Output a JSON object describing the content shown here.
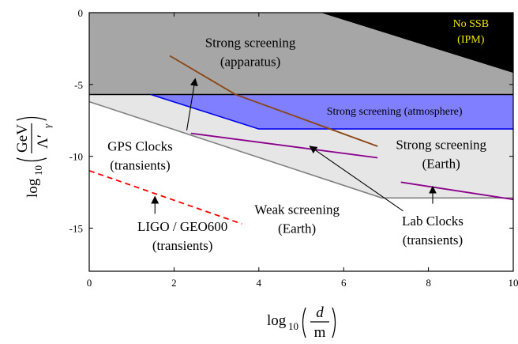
{
  "chart_data": {
    "type": "area",
    "xlabel": "log10(d/m)",
    "ylabel": "log10(GeV/Λ'γ)",
    "xlim": [
      0,
      10
    ],
    "ylim": [
      -18,
      0
    ],
    "xticks": [
      "0",
      "2",
      "4",
      "6",
      "8",
      "10"
    ],
    "yticks": [
      "0",
      "-5",
      "-10",
      "-15"
    ],
    "regions": [
      {
        "name": "No SSB",
        "label2": "(IPM)",
        "color": "#000000",
        "points": [
          [
            5.45,
            0
          ],
          [
            10,
            0
          ],
          [
            10,
            -4.2
          ]
        ]
      },
      {
        "name": "Strong screening",
        "label2": "(apparatus)",
        "color": "#a6a6a6",
        "points": [
          [
            0,
            0
          ],
          [
            5.45,
            0
          ],
          [
            10,
            -4.2
          ],
          [
            10,
            -5.7
          ],
          [
            0,
            -5.7
          ]
        ]
      },
      {
        "name": "Strong screening (atmosphere)",
        "color": "#7f7fff",
        "points": [
          [
            1.45,
            -5.7
          ],
          [
            10,
            -5.7
          ],
          [
            10,
            -8.1
          ],
          [
            4.0,
            -8.1
          ]
        ]
      },
      {
        "name": "Strong screening",
        "label2": "(Earth)",
        "color": "#e6e6e6",
        "points": [
          [
            0,
            -5.7
          ],
          [
            1.45,
            -5.7
          ],
          [
            4.0,
            -8.1
          ],
          [
            10,
            -8.1
          ],
          [
            10,
            -12.9
          ],
          [
            6.9,
            -12.9
          ],
          [
            0,
            -6.2
          ]
        ]
      }
    ],
    "boundaries": [
      {
        "name": "apparatus boundary",
        "color": "#000000",
        "points": [
          [
            0,
            -5.7
          ],
          [
            10,
            -5.7
          ]
        ]
      },
      {
        "name": "atmosphere boundary",
        "color": "#0000ee",
        "points": [
          [
            1.45,
            -5.7
          ],
          [
            4.0,
            -8.1
          ],
          [
            10,
            -8.1
          ]
        ]
      },
      {
        "name": "earth boundary",
        "color": "#808080",
        "points": [
          [
            0,
            -6.2
          ],
          [
            6.9,
            -12.9
          ],
          [
            10,
            -12.9
          ]
        ]
      }
    ],
    "series": [
      {
        "name": "GPS Clocks",
        "label2": "(transients)",
        "color": "#8b4513",
        "dash": false,
        "points": [
          [
            1.9,
            -3.0
          ],
          [
            3.45,
            -5.7
          ],
          [
            6.8,
            -9.3
          ]
        ]
      },
      {
        "name": "Lab Clocks",
        "label2": "(transients)",
        "color": "#8b008b",
        "dash": false,
        "points": [
          [
            2.4,
            -8.4
          ],
          [
            6.8,
            -10.1
          ]
        ]
      },
      {
        "name": "Lab Clocks",
        "label2": "(transients)",
        "color": "#8b008b",
        "dash": false,
        "points": [
          [
            7.35,
            -11.8
          ],
          [
            10,
            -13.0
          ]
        ]
      },
      {
        "name": "LIGO / GEO600",
        "label2": "(transients)",
        "color": "#ff0000",
        "dash": true,
        "points": [
          [
            0,
            -11.0
          ],
          [
            3.6,
            -14.7
          ]
        ]
      }
    ],
    "annotations": [
      {
        "line1": "Strong screening",
        "line2": "(apparatus)",
        "at": [
          3.8,
          -2.4
        ],
        "style": "reg"
      },
      {
        "line1": "No SSB",
        "line2": "(IPM)",
        "at": [
          9.0,
          -1.0
        ],
        "style": "ssb"
      },
      {
        "line1": "Strong screening (atmosphere)",
        "line2": "",
        "at": [
          7.2,
          -7.1
        ],
        "style": "reg-sm"
      },
      {
        "line1": "Strong screening",
        "line2": "(Earth)",
        "at": [
          8.3,
          -9.5
        ],
        "style": "reg"
      },
      {
        "line1": "GPS Clocks",
        "line2": "(transients)",
        "at": [
          1.2,
          -9.6
        ],
        "style": "reg"
      },
      {
        "line1": "Weak screening",
        "line2": "(Earth)",
        "at": [
          4.9,
          -14.0
        ],
        "style": "reg"
      },
      {
        "line1": "Lab Clocks",
        "line2": "(transients)",
        "at": [
          8.1,
          -14.8
        ],
        "style": "reg"
      },
      {
        "line1": "LIGO / GEO600",
        "line2": "(transients)",
        "at": [
          2.2,
          -15.2
        ],
        "style": "reg"
      }
    ],
    "arrows": [
      {
        "from": [
          2.3,
          -8.2
        ],
        "to": [
          2.5,
          -4.6
        ]
      },
      {
        "from": [
          7.4,
          -13.8
        ],
        "to": [
          5.2,
          -9.3
        ]
      },
      {
        "from": [
          8.1,
          -13.3
        ],
        "to": [
          8.1,
          -12.1
        ]
      },
      {
        "from": [
          1.55,
          -14.0
        ],
        "to": [
          1.55,
          -12.8
        ]
      }
    ],
    "grid": false,
    "legend": "none"
  },
  "axes": {
    "x_main": "log",
    "x_sub": "10",
    "x_num": "d",
    "x_den": "m",
    "y_main": "log",
    "y_sub": "10",
    "y_num": "GeV",
    "y_den": "Λ′",
    "y_den_sub": "γ"
  }
}
